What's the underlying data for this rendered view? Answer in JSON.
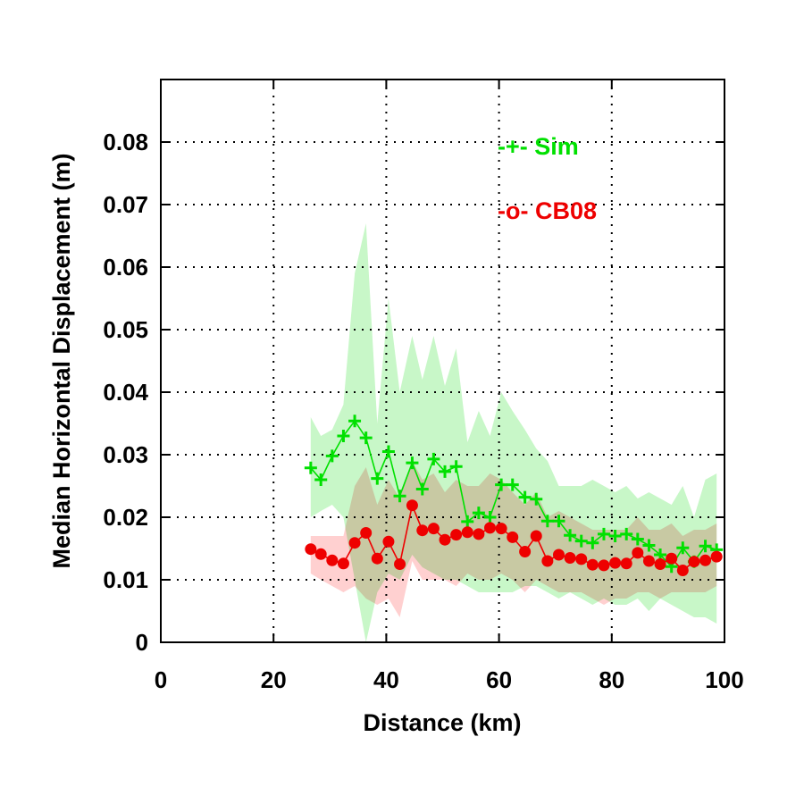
{
  "chart_data": {
    "type": "line",
    "title": "",
    "xlabel": "Distance (km)",
    "ylabel": "Median Horizontal Displacement (m)",
    "xlim": [
      0,
      100
    ],
    "ylim": [
      0,
      0.09
    ],
    "xticks": [
      0,
      20,
      40,
      60,
      80,
      100
    ],
    "yticks": [
      0,
      0.01,
      0.02,
      0.03,
      0.04,
      0.05,
      0.06,
      0.07,
      0.08
    ],
    "xtick_labels": [
      "0",
      "20",
      "40",
      "60",
      "80",
      "100"
    ],
    "ytick_labels": [
      "0",
      "0.01",
      "0.02",
      "0.03",
      "0.04",
      "0.05",
      "0.06",
      "0.07",
      "0.08"
    ],
    "grid": true,
    "legend_position": "top-right",
    "series": [
      {
        "name": "Sim",
        "legend_label": "-+- Sim",
        "color": "#00e000",
        "band_color": "#c8f7c8",
        "marker": "plus",
        "x": [
          26.6,
          28.4,
          30.4,
          32.4,
          34.4,
          36.4,
          38.4,
          40.4,
          42.4,
          44.6,
          46.4,
          48.4,
          50.4,
          52.4,
          54.4,
          56.4,
          58.4,
          60.4,
          62.4,
          64.6,
          66.6,
          68.6,
          70.6,
          72.6,
          74.6,
          76.6,
          78.6,
          80.6,
          82.6,
          84.6,
          86.6,
          88.6,
          90.6,
          92.6,
          94.6,
          96.6,
          98.6
        ],
        "values": [
          0.0279,
          0.026,
          0.0298,
          0.033,
          0.0354,
          0.0327,
          0.0262,
          0.0305,
          0.0234,
          0.0287,
          0.0245,
          0.0293,
          0.0273,
          0.0281,
          0.0193,
          0.0207,
          0.02,
          0.0252,
          0.0252,
          0.0232,
          0.0229,
          0.0194,
          0.0194,
          0.0171,
          0.0162,
          0.0159,
          0.0173,
          0.017,
          0.0173,
          0.0165,
          0.0155,
          0.014,
          0.0121,
          0.0151,
          0.0129,
          0.0154,
          0.0148
        ],
        "band_upper": [
          0.036,
          0.033,
          0.034,
          0.038,
          0.059,
          0.067,
          0.035,
          0.055,
          0.04,
          0.049,
          0.042,
          0.049,
          0.041,
          0.047,
          0.032,
          0.037,
          0.033,
          0.04,
          0.037,
          0.034,
          0.031,
          0.029,
          0.025,
          0.025,
          0.025,
          0.026,
          0.025,
          0.024,
          0.025,
          0.023,
          0.024,
          0.023,
          0.022,
          0.025,
          0.02,
          0.026,
          0.027
        ],
        "band_lower": [
          0.02,
          0.021,
          0.022,
          0.02,
          0.01,
          0.0,
          0.008,
          0.011,
          0.01,
          0.014,
          0.012,
          0.011,
          0.01,
          0.01,
          0.009,
          0.008,
          0.008,
          0.008,
          0.008,
          0.009,
          0.009,
          0.008,
          0.007,
          0.008,
          0.007,
          0.006,
          0.007,
          0.006,
          0.006,
          0.007,
          0.005,
          0.007,
          0.006,
          0.005,
          0.004,
          0.004,
          0.003
        ]
      },
      {
        "name": "CB08",
        "legend_label": "-o- CB08",
        "color": "#ee0000",
        "band_color": "#ffc0c0",
        "marker": "circle",
        "x": [
          26.6,
          28.4,
          30.4,
          32.4,
          34.4,
          36.4,
          38.4,
          40.4,
          42.4,
          44.6,
          46.4,
          48.4,
          50.4,
          52.4,
          54.4,
          56.4,
          58.4,
          60.4,
          62.4,
          64.6,
          66.6,
          68.6,
          70.6,
          72.6,
          74.6,
          76.6,
          78.6,
          80.6,
          82.6,
          84.6,
          86.6,
          88.6,
          90.6,
          92.6,
          94.6,
          96.6,
          98.6
        ],
        "values": [
          0.0149,
          0.0141,
          0.0131,
          0.0126,
          0.0159,
          0.0175,
          0.0134,
          0.0161,
          0.0125,
          0.0219,
          0.0179,
          0.0182,
          0.0164,
          0.0172,
          0.0176,
          0.0173,
          0.0183,
          0.0182,
          0.0168,
          0.0145,
          0.017,
          0.013,
          0.014,
          0.0135,
          0.0133,
          0.0124,
          0.0123,
          0.0127,
          0.0126,
          0.0143,
          0.013,
          0.0125,
          0.0134,
          0.0115,
          0.0129,
          0.0131,
          0.0137
        ],
        "band_upper": [
          0.017,
          0.017,
          0.017,
          0.017,
          0.025,
          0.028,
          0.022,
          0.026,
          0.023,
          0.029,
          0.026,
          0.027,
          0.024,
          0.026,
          0.025,
          0.025,
          0.027,
          0.026,
          0.024,
          0.022,
          0.024,
          0.02,
          0.021,
          0.02,
          0.019,
          0.018,
          0.018,
          0.018,
          0.018,
          0.02,
          0.018,
          0.018,
          0.019,
          0.017,
          0.018,
          0.018,
          0.019
        ],
        "band_lower": [
          0.011,
          0.01,
          0.009,
          0.008,
          0.009,
          0.007,
          0.006,
          0.007,
          0.004,
          0.013,
          0.01,
          0.01,
          0.01,
          0.009,
          0.011,
          0.01,
          0.01,
          0.011,
          0.01,
          0.008,
          0.01,
          0.009,
          0.008,
          0.008,
          0.008,
          0.007,
          0.006,
          0.007,
          0.007,
          0.008,
          0.008,
          0.007,
          0.008,
          0.008,
          0.008,
          0.008,
          0.009
        ]
      }
    ]
  }
}
